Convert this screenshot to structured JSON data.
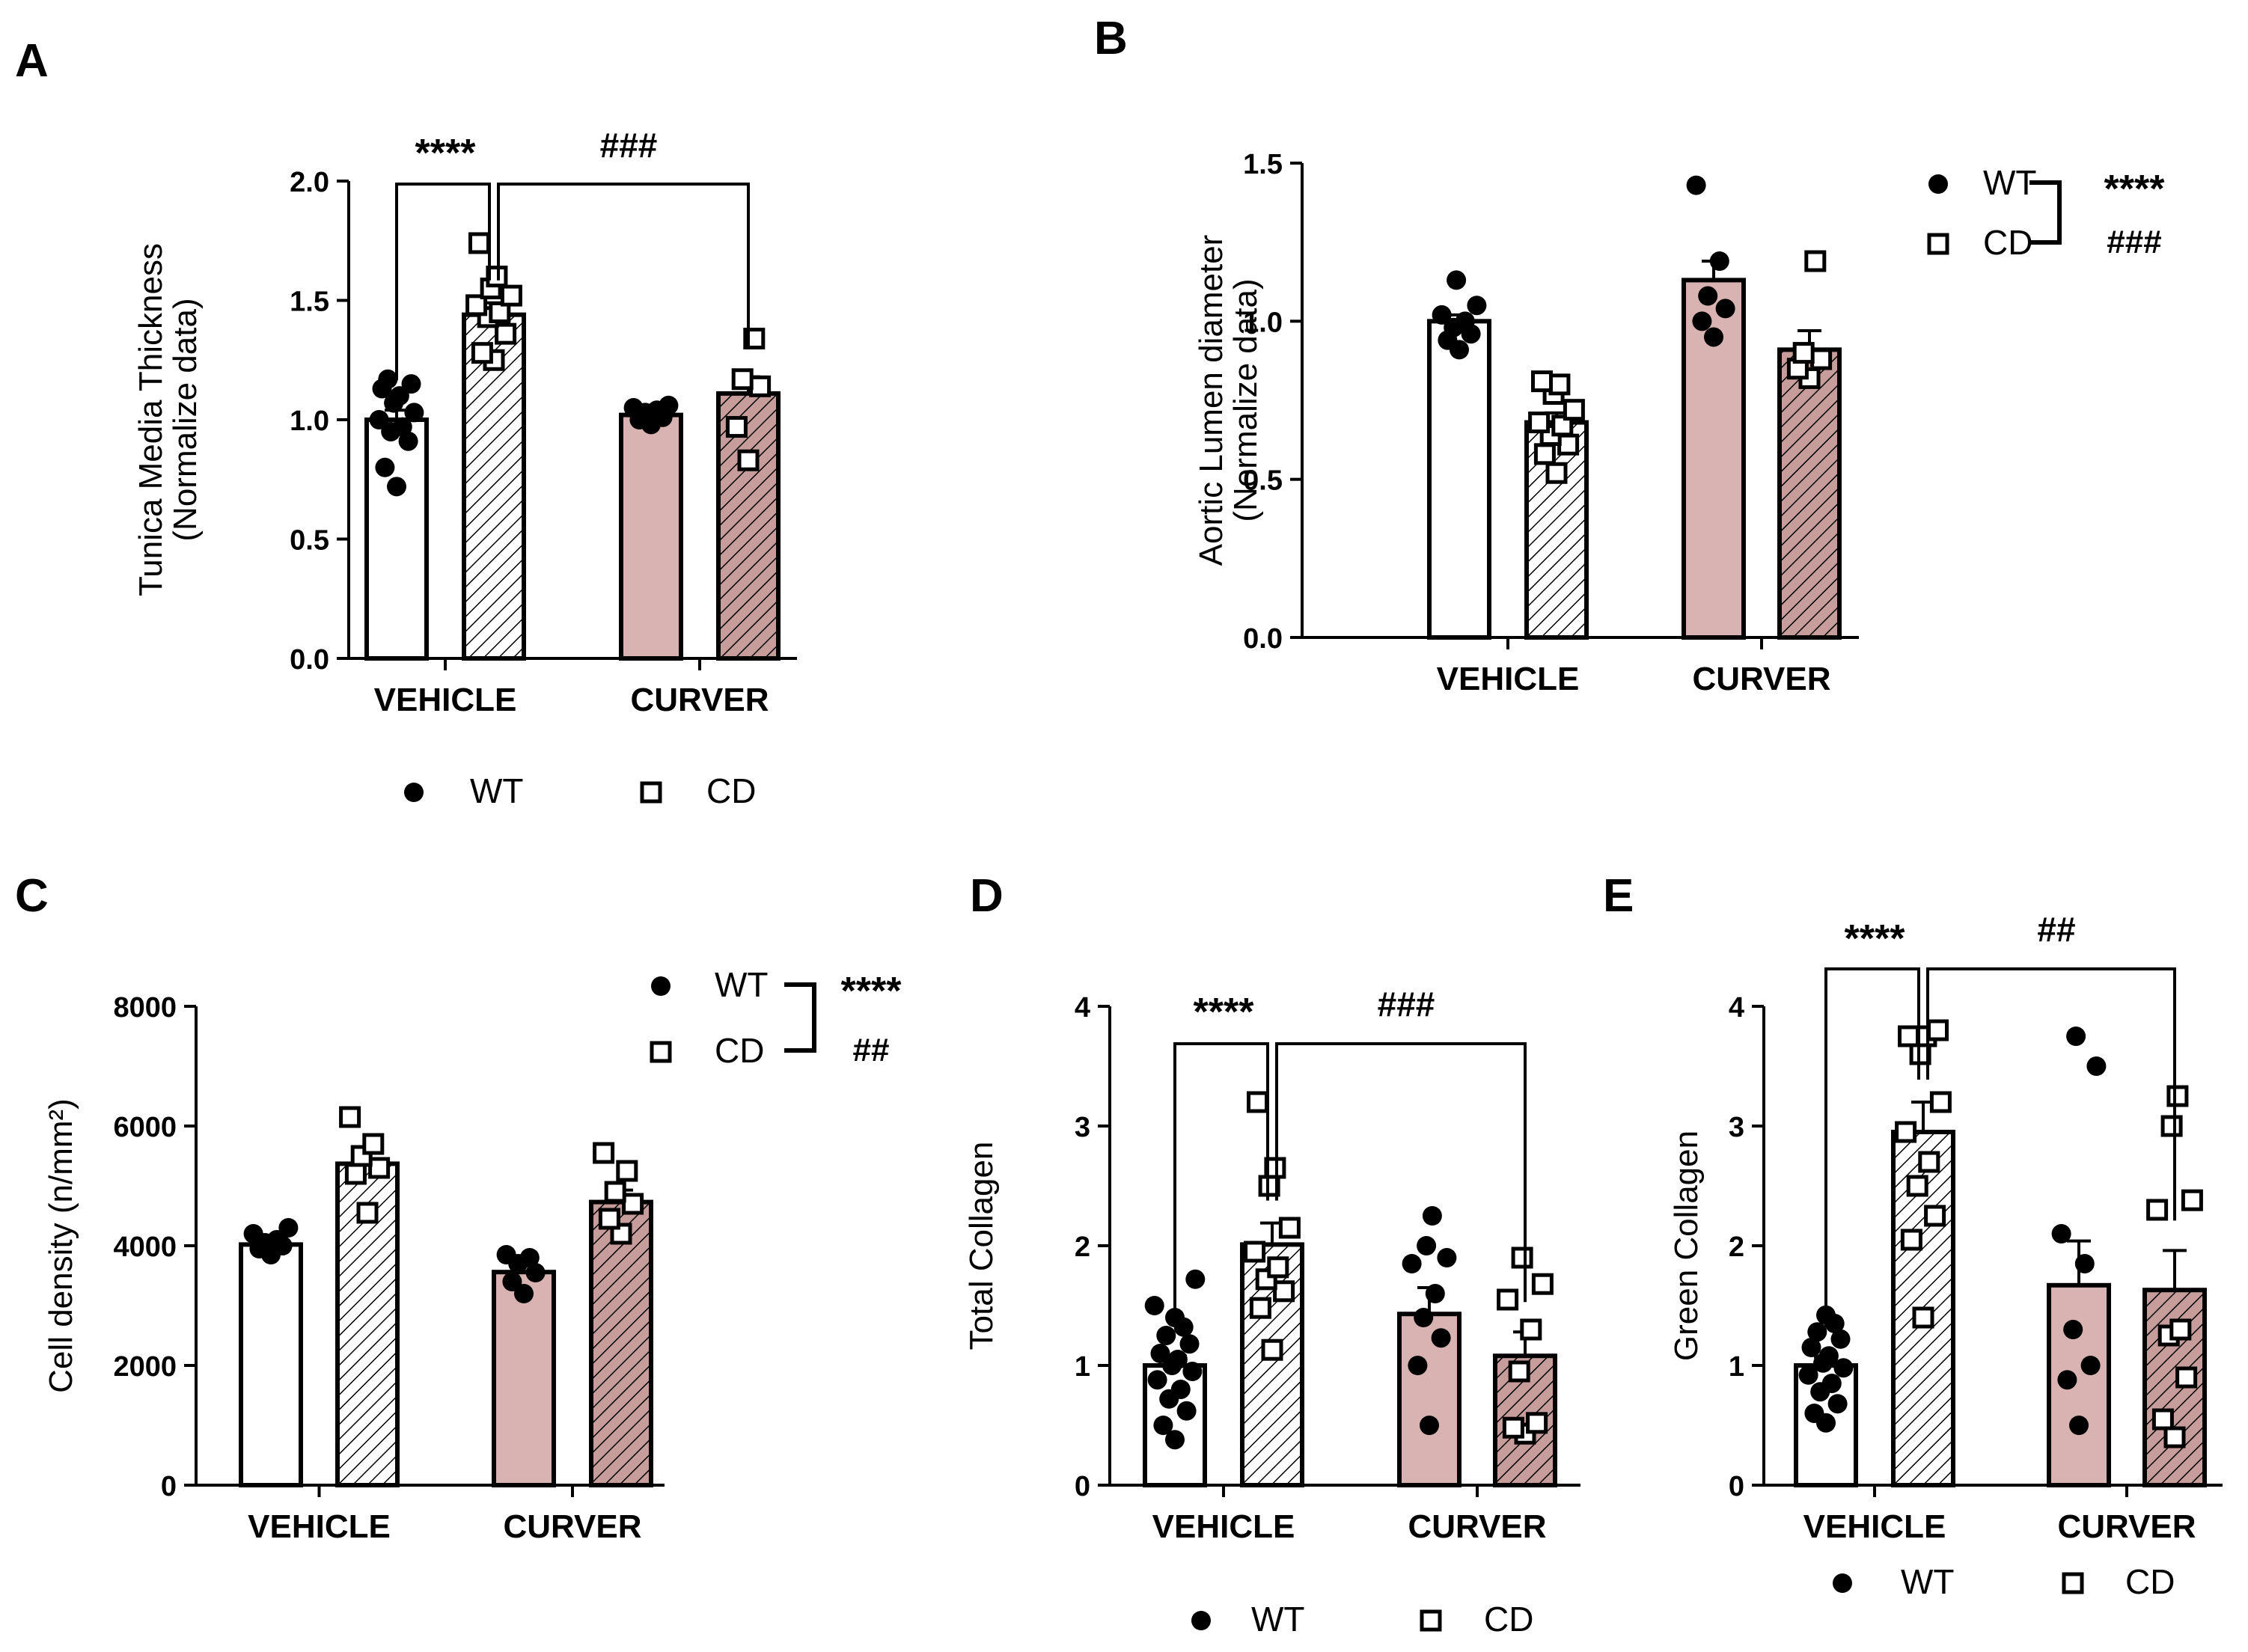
{
  "colors": {
    "wt_vehicle": "#ffffff",
    "wt_curver": "#d9b3b1",
    "cd_vehicle": "#ffffff",
    "cd_curver": "#c79d9c",
    "ink": "#000000"
  },
  "chart_data": [
    {
      "panel": "A",
      "type": "bar",
      "ylabel_lines": [
        "Tunica Media Thickness",
        "(Normalize data)"
      ],
      "ylim": [
        0,
        2.0
      ],
      "ytick_labels": [
        "0.0",
        "0.5",
        "1.0",
        "1.5",
        "2.0"
      ],
      "categories": [
        "VEHICLE",
        "CURVER"
      ],
      "legend": {
        "placement": "bottom",
        "items": [
          "WT",
          "CD"
        ]
      },
      "series": [
        {
          "name": "WT",
          "marker": "circle",
          "values": [
            1.0,
            1.02
          ],
          "errors": [
            0.04,
            0.02
          ],
          "points": [
            [
              0.72,
              0.8,
              0.91,
              0.95,
              0.97,
              1.0,
              1.03,
              1.07,
              1.1,
              1.13,
              1.15,
              1.17
            ],
            [
              0.98,
              1.0,
              1.01,
              1.03,
              1.04,
              1.05,
              1.06
            ]
          ]
        },
        {
          "name": "CD",
          "marker": "square",
          "values": [
            1.44,
            1.11
          ],
          "errors": [
            0.05,
            0.07
          ],
          "points": [
            [
              1.25,
              1.28,
              1.36,
              1.43,
              1.45,
              1.48,
              1.52,
              1.55,
              1.6,
              1.74
            ],
            [
              0.83,
              0.97,
              1.14,
              1.17,
              1.34
            ]
          ]
        }
      ],
      "annotations": [
        {
          "text": "****",
          "from": "VEHICLE-WT",
          "to": "VEHICLE-CD"
        },
        {
          "text": "###",
          "from": "VEHICLE-CD",
          "to": "CURVER-CD"
        }
      ]
    },
    {
      "panel": "B",
      "type": "bar",
      "ylabel_lines": [
        "Aortic Lumen diameter",
        "(Normalize data)"
      ],
      "ylim": [
        0,
        1.5
      ],
      "ytick_labels": [
        "0.0",
        "0.5",
        "1.0",
        "1.5"
      ],
      "categories": [
        "VEHICLE",
        "CURVER"
      ],
      "legend": {
        "placement": "top-right",
        "items": [
          "WT",
          "CD"
        ],
        "bracket": [
          "****",
          "###"
        ]
      },
      "series": [
        {
          "name": "WT",
          "marker": "circle",
          "values": [
            1.0,
            1.13
          ],
          "errors": [
            0.02,
            0.06
          ],
          "points": [
            [
              0.91,
              0.94,
              0.96,
              0.98,
              1.0,
              1.02,
              1.05,
              1.13
            ],
            [
              0.95,
              1.0,
              1.04,
              1.08,
              1.19,
              1.43
            ]
          ]
        },
        {
          "name": "CD",
          "marker": "square",
          "values": [
            0.68,
            0.91
          ],
          "errors": [
            0.03,
            0.06
          ],
          "points": [
            [
              0.52,
              0.58,
              0.61,
              0.64,
              0.67,
              0.68,
              0.72,
              0.77,
              0.8,
              0.81
            ],
            [
              0.82,
              0.85,
              0.88,
              0.9,
              1.19
            ]
          ]
        }
      ]
    },
    {
      "panel": "C",
      "type": "bar",
      "ylabel_lines": [
        "Cell density (n/mm²)"
      ],
      "ylim": [
        0,
        8000
      ],
      "ytick_labels": [
        "0",
        "2000",
        "4000",
        "6000",
        "8000"
      ],
      "categories": [
        "VEHICLE",
        "CURVER"
      ],
      "legend": {
        "placement": "top-right",
        "items": [
          "WT",
          "CD"
        ],
        "bracket": [
          "****",
          "##"
        ]
      },
      "series": [
        {
          "name": "WT",
          "marker": "circle",
          "values": [
            4020,
            3560
          ],
          "errors": [
            90,
            120
          ],
          "points": [
            [
              3850,
              3950,
              4000,
              4050,
              4100,
              4200,
              4300
            ],
            [
              3200,
              3400,
              3550,
              3700,
              3800,
              3850
            ]
          ]
        },
        {
          "name": "CD",
          "marker": "square",
          "values": [
            5370,
            4730
          ],
          "errors": [
            230,
            200
          ],
          "points": [
            [
              4550,
              5200,
              5300,
              5500,
              5700,
              6150
            ],
            [
              4200,
              4450,
              4700,
              4900,
              5250,
              5550
            ]
          ]
        }
      ]
    },
    {
      "panel": "D",
      "type": "bar",
      "ylabel_lines": [
        "Total Collagen"
      ],
      "ylim": [
        0,
        4
      ],
      "ytick_labels": [
        "0",
        "1",
        "2",
        "3",
        "4"
      ],
      "categories": [
        "VEHICLE",
        "CURVER"
      ],
      "legend": {
        "placement": "bottom",
        "items": [
          "WT",
          "CD"
        ]
      },
      "series": [
        {
          "name": "WT",
          "marker": "circle",
          "values": [
            1.0,
            1.43
          ],
          "errors": [
            0.08,
            0.22
          ],
          "points": [
            [
              0.38,
              0.5,
              0.62,
              0.72,
              0.8,
              0.88,
              0.95,
              1.0,
              1.05,
              1.1,
              1.18,
              1.25,
              1.32,
              1.4,
              1.5,
              1.72
            ],
            [
              0.5,
              1.0,
              1.23,
              1.4,
              1.6,
              1.85,
              1.9,
              2.0,
              2.25
            ]
          ]
        },
        {
          "name": "CD",
          "marker": "square",
          "values": [
            2.01,
            1.08
          ],
          "errors": [
            0.18,
            0.2
          ],
          "points": [
            [
              1.13,
              1.48,
              1.62,
              1.72,
              1.82,
              1.95,
              2.15,
              2.5,
              2.65,
              3.2
            ],
            [
              0.43,
              0.48,
              0.52,
              0.95,
              1.3,
              1.55,
              1.68,
              1.9
            ]
          ]
        }
      ],
      "annotations": [
        {
          "text": "****",
          "from": "VEHICLE-WT",
          "to": "VEHICLE-CD"
        },
        {
          "text": "###",
          "from": "VEHICLE-CD",
          "to": "CURVER-CD"
        }
      ]
    },
    {
      "panel": "E",
      "type": "bar",
      "ylabel_lines": [
        "Green Collagen"
      ],
      "ylim": [
        0,
        4
      ],
      "ytick_labels": [
        "0",
        "1",
        "2",
        "3",
        "4"
      ],
      "categories": [
        "VEHICLE",
        "CURVER"
      ],
      "legend": {
        "placement": "bottom",
        "items": [
          "WT",
          "CD"
        ]
      },
      "series": [
        {
          "name": "WT",
          "marker": "circle",
          "values": [
            1.0,
            1.67
          ],
          "errors": [
            0.07,
            0.37
          ],
          "points": [
            [
              0.52,
              0.6,
              0.68,
              0.78,
              0.85,
              0.92,
              0.98,
              1.02,
              1.08,
              1.15,
              1.22,
              1.28,
              1.35,
              1.42
            ],
            [
              0.5,
              0.88,
              1.0,
              1.3,
              1.85,
              2.1,
              3.5,
              3.75
            ]
          ]
        },
        {
          "name": "CD",
          "marker": "square",
          "values": [
            2.95,
            1.63
          ],
          "errors": [
            0.25,
            0.33
          ],
          "points": [
            [
              1.4,
              2.05,
              2.25,
              2.5,
              2.7,
              2.95,
              3.2,
              3.6,
              3.75,
              3.75,
              3.8
            ],
            [
              0.4,
              0.55,
              0.9,
              1.25,
              1.3,
              2.3,
              2.38,
              3.0,
              3.25
            ]
          ]
        }
      ],
      "annotations": [
        {
          "text": "****",
          "from": "VEHICLE-WT",
          "to": "VEHICLE-CD"
        },
        {
          "text": "##",
          "from": "VEHICLE-CD",
          "to": "CURVER-CD"
        }
      ]
    }
  ]
}
